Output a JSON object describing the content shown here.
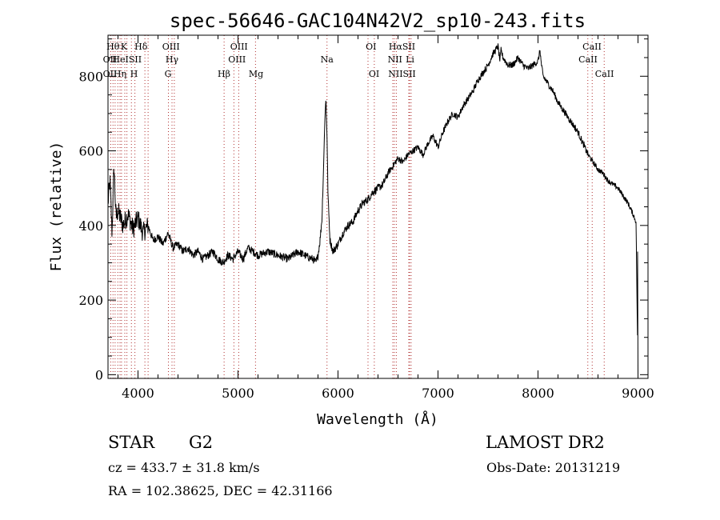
{
  "chart_data": {
    "type": "line",
    "title": "spec-56646-GAC104N42V2_sp10-243.fits",
    "xlabel": "Wavelength (Å)",
    "ylabel": "Flux (relative)",
    "xlim": [
      3700,
      9100
    ],
    "ylim": [
      -10,
      910
    ],
    "xticks": [
      4000,
      5000,
      6000,
      7000,
      8000,
      9000
    ],
    "yticks": [
      0,
      200,
      400,
      600,
      800
    ],
    "line_color": "#000000",
    "marker_color": "#b03030",
    "series": [
      {
        "x": [
          3700,
          3720,
          3740,
          3760,
          3780,
          3800,
          3850,
          3900,
          3950,
          4000,
          4050,
          4100,
          4150,
          4200,
          4250,
          4300,
          4350,
          4400,
          4450,
          4500,
          4550,
          4600,
          4650,
          4700,
          4750,
          4800,
          4850,
          4900,
          4950,
          5000,
          5050,
          5100,
          5150,
          5200,
          5300,
          5400,
          5500,
          5600,
          5700,
          5750,
          5780,
          5800,
          5820,
          5840,
          5860,
          5870,
          5880,
          5890,
          5900,
          5920,
          5950,
          6000,
          6050,
          6100,
          6150,
          6200,
          6250,
          6300,
          6350,
          6400,
          6450,
          6500,
          6550,
          6600,
          6650,
          6700,
          6750,
          6800,
          6850,
          6900,
          6950,
          7000,
          7050,
          7100,
          7150,
          7200,
          7250,
          7300,
          7350,
          7400,
          7450,
          7500,
          7550,
          7600,
          7620,
          7630,
          7650,
          7700,
          7750,
          7800,
          7850,
          7900,
          7950,
          8000,
          8020,
          8030,
          8050,
          8100,
          8150,
          8200,
          8250,
          8300,
          8350,
          8400,
          8450,
          8500,
          8550,
          8600,
          8650,
          8700,
          8750,
          8800,
          8850,
          8900,
          8950,
          8980,
          9000
        ],
        "y": [
          460,
          520,
          380,
          560,
          420,
          440,
          400,
          430,
          390,
          420,
          380,
          400,
          360,
          370,
          350,
          380,
          340,
          350,
          330,
          340,
          320,
          330,
          310,
          320,
          330,
          310,
          300,
          320,
          310,
          330,
          310,
          340,
          330,
          320,
          330,
          320,
          310,
          330,
          315,
          310,
          300,
          320,
          360,
          420,
          600,
          700,
          740,
          640,
          480,
          360,
          330,
          350,
          380,
          400,
          410,
          440,
          460,
          470,
          490,
          500,
          510,
          540,
          560,
          580,
          570,
          590,
          600,
          610,
          590,
          620,
          640,
          610,
          650,
          680,
          700,
          690,
          720,
          740,
          760,
          790,
          810,
          830,
          860,
          880,
          840,
          870,
          850,
          830,
          830,
          850,
          830,
          820,
          830,
          840,
          870,
          840,
          800,
          780,
          760,
          730,
          710,
          690,
          670,
          650,
          620,
          590,
          570,
          550,
          540,
          520,
          510,
          500,
          480,
          460,
          430,
          410,
          0
        ]
      }
    ],
    "line_labels": [
      {
        "text": "Hθ",
        "x": 3750,
        "row": 0
      },
      {
        "text": "K",
        "x": 3860,
        "row": 0
      },
      {
        "text": "Hδ",
        "x": 4030,
        "row": 0
      },
      {
        "text": "OIII",
        "x": 4330,
        "row": 0
      },
      {
        "text": "OIII",
        "x": 5010,
        "row": 0
      },
      {
        "text": "OI",
        "x": 6330,
        "row": 0
      },
      {
        "text": "HαSII",
        "x": 6640,
        "row": 0
      },
      {
        "text": "CaII",
        "x": 8540,
        "row": 0
      },
      {
        "text": "OII",
        "x": 3720,
        "row": 1
      },
      {
        "text": "HeISII",
        "x": 3890,
        "row": 1
      },
      {
        "text": "Hγ",
        "x": 4340,
        "row": 1
      },
      {
        "text": "OIII",
        "x": 4990,
        "row": 1
      },
      {
        "text": "Na",
        "x": 5890,
        "row": 1
      },
      {
        "text": "NII",
        "x": 6570,
        "row": 1
      },
      {
        "text": "Li",
        "x": 6720,
        "row": 1
      },
      {
        "text": "CaII",
        "x": 8500,
        "row": 1
      },
      {
        "text": "OII",
        "x": 3720,
        "row": 2
      },
      {
        "text": "Hη",
        "x": 3820,
        "row": 2
      },
      {
        "text": "H",
        "x": 3960,
        "row": 2
      },
      {
        "text": "G",
        "x": 4300,
        "row": 2
      },
      {
        "text": "Hβ",
        "x": 4860,
        "row": 2
      },
      {
        "text": "Mg",
        "x": 5180,
        "row": 2
      },
      {
        "text": "OI",
        "x": 6360,
        "row": 2
      },
      {
        "text": "NIISII",
        "x": 6640,
        "row": 2
      },
      {
        "text": "CaII",
        "x": 8665,
        "row": 2
      }
    ],
    "line_markers": [
      3727,
      3750,
      3771,
      3798,
      3820,
      3835,
      3868,
      3889,
      3934,
      3969,
      4069,
      4101,
      4304,
      4340,
      4363,
      4861,
      4959,
      5007,
      5175,
      5890,
      6300,
      6363,
      6548,
      6563,
      6583,
      6708,
      6716,
      6731,
      8498,
      8542,
      8662
    ]
  },
  "info": {
    "object_class": "STAR",
    "subclass": "G2",
    "survey": "LAMOST DR2",
    "redshift": "cz = 433.7 ± 31.8 km/s",
    "obs_date": "Obs-Date: 20131219",
    "coords": "RA = 102.38625, DEC =  42.31166"
  }
}
